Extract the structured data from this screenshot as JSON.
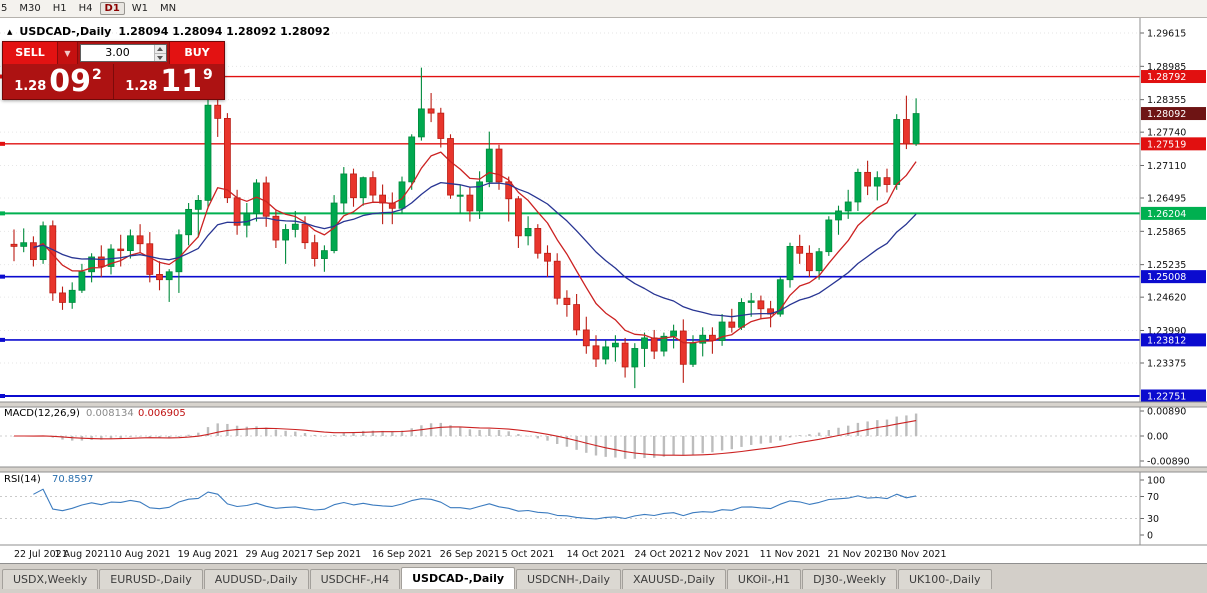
{
  "toolbar": {
    "timeframes": [
      {
        "label": "5",
        "active": false
      },
      {
        "label": "M30",
        "active": false
      },
      {
        "label": "H1",
        "active": false
      },
      {
        "label": "H4",
        "active": false
      },
      {
        "label": "D1",
        "active": true
      },
      {
        "label": "W1",
        "active": false
      },
      {
        "label": "MN",
        "active": false
      }
    ]
  },
  "chart_header": {
    "toggle_icon": "▲",
    "title": "USDCAD-,Daily",
    "ohlc": "1.28094 1.28094 1.28092 1.28092"
  },
  "trade_panel": {
    "sell_label": "SELL",
    "buy_label": "BUY",
    "volume": "3.00",
    "sell_price": {
      "small": "1.28",
      "big": "09",
      "sup": "2"
    },
    "buy_price": {
      "small": "1.28",
      "big": "11",
      "sup": "9"
    }
  },
  "tabs": {
    "items": [
      {
        "label": "USDX,Weekly",
        "active": false
      },
      {
        "label": "EURUSD-,Daily",
        "active": false
      },
      {
        "label": "AUDUSD-,Daily",
        "active": false
      },
      {
        "label": "USDCHF-,H4",
        "active": false
      },
      {
        "label": "USDCAD-,Daily",
        "active": true
      },
      {
        "label": "USDCNH-,Daily",
        "active": false
      },
      {
        "label": "XAUUSD-,Daily",
        "active": false
      },
      {
        "label": "UKOil-,H1",
        "active": false
      },
      {
        "label": "DJ30-,Weekly",
        "active": false
      },
      {
        "label": "UK100-,Daily",
        "active": false
      }
    ]
  },
  "chart_data": {
    "type": "candlestick",
    "symbol": "USDCAD-",
    "period": "Daily",
    "price_axis_labels": [
      "1.29615",
      "1.28985",
      "1.28355",
      "1.27740",
      "1.27110",
      "1.26495",
      "1.25865",
      "1.25235",
      "1.24620",
      "1.23990",
      "1.23375"
    ],
    "hlines": [
      {
        "price": 1.28792,
        "label": "1.28792",
        "color": "#e11010",
        "width": 1.4
      },
      {
        "price": 1.27519,
        "label": "1.27519",
        "color": "#e11010",
        "width": 1.4
      },
      {
        "price": 1.26204,
        "label": "1.26204",
        "color": "#00b050",
        "width": 2
      },
      {
        "price": 1.25008,
        "label": "1.25008",
        "color": "#0b0bcf",
        "width": 1.6
      },
      {
        "price": 1.23812,
        "label": "1.23812",
        "color": "#0b0bcf",
        "width": 1.6
      },
      {
        "price": 1.22751,
        "label": "1.22751",
        "color": "#0b0bcf",
        "width": 2
      }
    ],
    "bid_tag": {
      "price": 1.28092,
      "label": "1.28092",
      "color": "#6e1414"
    },
    "x_labels": [
      {
        "i": 0,
        "label": "22 Jul 2021"
      },
      {
        "i": 7,
        "label": "1 Aug 2021"
      },
      {
        "i": 13,
        "label": "10 Aug 2021"
      },
      {
        "i": 20,
        "label": "19 Aug 2021"
      },
      {
        "i": 27,
        "label": "29 Aug 2021"
      },
      {
        "i": 33,
        "label": "7 Sep 2021"
      },
      {
        "i": 40,
        "label": "16 Sep 2021"
      },
      {
        "i": 47,
        "label": "26 Sep 2021"
      },
      {
        "i": 53,
        "label": "5 Oct 2021"
      },
      {
        "i": 60,
        "label": "14 Oct 2021"
      },
      {
        "i": 67,
        "label": "24 Oct 2021"
      },
      {
        "i": 73,
        "label": "2 Nov 2021"
      },
      {
        "i": 80,
        "label": "11 Nov 2021"
      },
      {
        "i": 87,
        "label": "21 Nov 2021"
      },
      {
        "i": 93,
        "label": "30 Nov 2021"
      }
    ],
    "candles": [
      [
        "22 Jul",
        1.2562,
        1.259,
        1.253,
        1.2558
      ],
      [
        "23 Jul",
        1.2558,
        1.2592,
        1.2547,
        1.2565
      ],
      [
        "26 Jul",
        1.2565,
        1.2577,
        1.252,
        1.2533
      ],
      [
        "27 Jul",
        1.2533,
        1.2605,
        1.2525,
        1.2597
      ],
      [
        "28 Jul",
        1.2597,
        1.2607,
        1.2455,
        1.247
      ],
      [
        "29 Jul",
        1.247,
        1.2482,
        1.2438,
        1.2452
      ],
      [
        "30 Jul",
        1.2452,
        1.249,
        1.244,
        1.2475
      ],
      [
        "2 Aug",
        1.2475,
        1.2525,
        1.247,
        1.251
      ],
      [
        "3 Aug",
        1.251,
        1.2545,
        1.249,
        1.2538
      ],
      [
        "4 Aug",
        1.2538,
        1.256,
        1.25,
        1.252
      ],
      [
        "5 Aug",
        1.252,
        1.2562,
        1.2505,
        1.2553
      ],
      [
        "6 Aug",
        1.2553,
        1.258,
        1.252,
        1.255
      ],
      [
        "9 Aug",
        1.255,
        1.259,
        1.2535,
        1.2578
      ],
      [
        "10 Aug",
        1.2578,
        1.26,
        1.2545,
        1.2563
      ],
      [
        "11 Aug",
        1.2563,
        1.2585,
        1.249,
        1.2505
      ],
      [
        "12 Aug",
        1.2505,
        1.253,
        1.2475,
        1.2495
      ],
      [
        "13 Aug",
        1.2495,
        1.2515,
        1.2453,
        1.251
      ],
      [
        "16 Aug",
        1.251,
        1.259,
        1.247,
        1.258
      ],
      [
        "17 Aug",
        1.258,
        1.264,
        1.256,
        1.2628
      ],
      [
        "18 Aug",
        1.2628,
        1.2655,
        1.2575,
        1.2645
      ],
      [
        "19 Aug",
        1.2645,
        1.284,
        1.263,
        1.2825
      ],
      [
        "20 Aug",
        1.2825,
        1.285,
        1.2765,
        1.28
      ],
      [
        "23 Aug",
        1.28,
        1.281,
        1.264,
        1.265
      ],
      [
        "24 Aug",
        1.265,
        1.2665,
        1.258,
        1.2598
      ],
      [
        "25 Aug",
        1.2598,
        1.264,
        1.2575,
        1.262
      ],
      [
        "26 Aug",
        1.262,
        1.2685,
        1.2605,
        1.2678
      ],
      [
        "27 Aug",
        1.2678,
        1.269,
        1.2595,
        1.2615
      ],
      [
        "30 Aug",
        1.2615,
        1.2628,
        1.2555,
        1.257
      ],
      [
        "31 Aug",
        1.257,
        1.26,
        1.2525,
        1.259
      ],
      [
        "1 Sep",
        1.259,
        1.2625,
        1.2575,
        1.26
      ],
      [
        "2 Sep",
        1.26,
        1.2615,
        1.2553,
        1.2565
      ],
      [
        "3 Sep",
        1.2565,
        1.258,
        1.252,
        1.2535
      ],
      [
        "6 Sep",
        1.2535,
        1.256,
        1.251,
        1.255
      ],
      [
        "7 Sep",
        1.255,
        1.2655,
        1.2545,
        1.264
      ],
      [
        "8 Sep",
        1.264,
        1.2708,
        1.262,
        1.2695
      ],
      [
        "9 Sep",
        1.2695,
        1.2705,
        1.2633,
        1.265
      ],
      [
        "10 Sep",
        1.265,
        1.269,
        1.2635,
        1.2688
      ],
      [
        "13 Sep",
        1.2688,
        1.27,
        1.264,
        1.2655
      ],
      [
        "14 Sep",
        1.2655,
        1.2675,
        1.26,
        1.264
      ],
      [
        "15 Sep",
        1.264,
        1.266,
        1.26,
        1.263
      ],
      [
        "16 Sep",
        1.263,
        1.269,
        1.262,
        1.268
      ],
      [
        "17 Sep",
        1.268,
        1.277,
        1.2665,
        1.2765
      ],
      [
        "20 Sep",
        1.2765,
        1.2896,
        1.2758,
        1.2818
      ],
      [
        "21 Sep",
        1.2818,
        1.2848,
        1.2793,
        1.281
      ],
      [
        "22 Sep",
        1.281,
        1.282,
        1.2745,
        1.2762
      ],
      [
        "23 Sep",
        1.2762,
        1.277,
        1.2648,
        1.2655
      ],
      [
        "24 Sep",
        1.2655,
        1.2675,
        1.262,
        1.2655
      ],
      [
        "27 Sep",
        1.2655,
        1.267,
        1.2605,
        1.2625
      ],
      [
        "28 Sep",
        1.2625,
        1.27,
        1.261,
        1.268
      ],
      [
        "29 Sep",
        1.268,
        1.2775,
        1.267,
        1.2742
      ],
      [
        "30 Sep",
        1.2742,
        1.275,
        1.2665,
        1.268
      ],
      [
        "1 Oct",
        1.268,
        1.269,
        1.2605,
        1.2648
      ],
      [
        "4 Oct",
        1.2648,
        1.2653,
        1.2555,
        1.2578
      ],
      [
        "5 Oct",
        1.2578,
        1.2615,
        1.256,
        1.2592
      ],
      [
        "6 Oct",
        1.2592,
        1.26,
        1.2535,
        1.2545
      ],
      [
        "7 Oct",
        1.2545,
        1.256,
        1.25,
        1.253
      ],
      [
        "8 Oct",
        1.253,
        1.2545,
        1.2448,
        1.246
      ],
      [
        "11 Oct",
        1.246,
        1.2475,
        1.2425,
        1.2448
      ],
      [
        "12 Oct",
        1.2448,
        1.2468,
        1.239,
        1.24
      ],
      [
        "13 Oct",
        1.24,
        1.2425,
        1.2355,
        1.237
      ],
      [
        "14 Oct",
        1.237,
        1.239,
        1.233,
        1.2345
      ],
      [
        "15 Oct",
        1.2345,
        1.238,
        1.2335,
        1.2368
      ],
      [
        "18 Oct",
        1.2368,
        1.239,
        1.234,
        1.2375
      ],
      [
        "19 Oct",
        1.2375,
        1.2385,
        1.231,
        1.233
      ],
      [
        "20 Oct",
        1.233,
        1.2375,
        1.229,
        1.2365
      ],
      [
        "21 Oct",
        1.2365,
        1.2395,
        1.233,
        1.2385
      ],
      [
        "22 Oct",
        1.2385,
        1.24,
        1.2345,
        1.236
      ],
      [
        "25 Oct",
        1.236,
        1.2395,
        1.235,
        1.2388
      ],
      [
        "26 Oct",
        1.2388,
        1.241,
        1.2365,
        1.2398
      ],
      [
        "27 Oct",
        1.2398,
        1.242,
        1.23,
        1.2335
      ],
      [
        "28 Oct",
        1.2335,
        1.239,
        1.233,
        1.2375
      ],
      [
        "29 Oct",
        1.2375,
        1.2405,
        1.235,
        1.239
      ],
      [
        "1 Nov",
        1.239,
        1.2405,
        1.2355,
        1.238
      ],
      [
        "2 Nov",
        1.238,
        1.243,
        1.237,
        1.2415
      ],
      [
        "3 Nov",
        1.2415,
        1.244,
        1.2395,
        1.2405
      ],
      [
        "4 Nov",
        1.2405,
        1.246,
        1.24,
        1.2452
      ],
      [
        "5 Nov",
        1.2452,
        1.247,
        1.2425,
        1.2455
      ],
      [
        "8 Nov",
        1.2455,
        1.2465,
        1.242,
        1.244
      ],
      [
        "9 Nov",
        1.244,
        1.2455,
        1.2405,
        1.243
      ],
      [
        "10 Nov",
        1.243,
        1.25,
        1.2425,
        1.2495
      ],
      [
        "11 Nov",
        1.2495,
        1.2565,
        1.248,
        1.2558
      ],
      [
        "12 Nov",
        1.2558,
        1.258,
        1.2525,
        1.2545
      ],
      [
        "15 Nov",
        1.2545,
        1.256,
        1.25,
        1.2512
      ],
      [
        "16 Nov",
        1.2512,
        1.2555,
        1.2495,
        1.2548
      ],
      [
        "17 Nov",
        1.2548,
        1.2615,
        1.254,
        1.2608
      ],
      [
        "18 Nov",
        1.2608,
        1.2635,
        1.258,
        1.2625
      ],
      [
        "19 Nov",
        1.2625,
        1.2665,
        1.261,
        1.2642
      ],
      [
        "22 Nov",
        1.2642,
        1.2705,
        1.2625,
        1.2698
      ],
      [
        "23 Nov",
        1.2698,
        1.272,
        1.2655,
        1.2672
      ],
      [
        "24 Nov",
        1.2672,
        1.27,
        1.2645,
        1.2688
      ],
      [
        "25 Nov",
        1.2688,
        1.2705,
        1.266,
        1.2675
      ],
      [
        "26 Nov",
        1.2675,
        1.2808,
        1.2665,
        1.2798
      ],
      [
        "29 Nov",
        1.2798,
        1.2843,
        1.2742,
        1.2752
      ],
      [
        "30 Nov",
        1.2752,
        1.2838,
        1.2748,
        1.28092
      ]
    ],
    "colors": {
      "bull_fill": "#00a84f",
      "bull_stroke": "#008a3c",
      "bear_fill": "#e8352c",
      "bear_stroke": "#bb1d14",
      "ma_fast": "#cc2222",
      "ma_slow": "#283593",
      "macd_hist": "#bdbdbd",
      "macd_signal": "#cc2222",
      "rsi_line": "#3b7bbf"
    },
    "macd": {
      "label": "MACD(12,26,9)",
      "main_value": "0.008134",
      "signal_value": "0.006905",
      "axis": [
        {
          "v": 0.0089,
          "label": "0.00890"
        },
        {
          "v": 0,
          "label": "0.00"
        },
        {
          "v": -0.0089,
          "label": "-0.00890"
        }
      ]
    },
    "rsi": {
      "label": "RSI(14)",
      "value": "70.8597",
      "axis": [
        {
          "v": 100,
          "label": "100"
        },
        {
          "v": 70,
          "label": "70"
        },
        {
          "v": 30,
          "label": "30"
        },
        {
          "v": 0,
          "label": "0"
        }
      ],
      "levels": [
        70,
        30
      ]
    }
  }
}
